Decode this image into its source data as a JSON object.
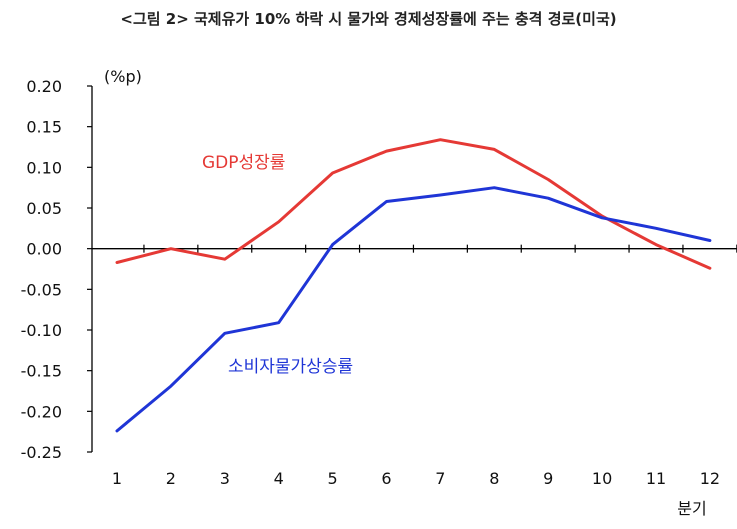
{
  "chart_data": {
    "type": "line",
    "title": "<그림 2> 국제유가 10% 하락 시 물가와 경제성장률에 주는 충격 경로(미국)",
    "unit_label": "(%p)",
    "xlabel": "분기",
    "ylabel": "",
    "x": [
      1,
      2,
      3,
      4,
      5,
      6,
      7,
      8,
      9,
      10,
      11,
      12
    ],
    "ylim": [
      -0.25,
      0.2
    ],
    "yticks": [
      0.2,
      0.15,
      0.1,
      0.05,
      0.0,
      -0.05,
      -0.1,
      -0.15,
      -0.2,
      -0.25
    ],
    "ytick_labels": [
      "0.20",
      "0.15",
      "0.10",
      "0.05",
      "0.00",
      "-0.05",
      "-0.10",
      "-0.15",
      "-0.20",
      "-0.25"
    ],
    "grid": false,
    "series": [
      {
        "name": "GDP성장률",
        "color": "#e53935",
        "values": [
          -0.017,
          0.0,
          -0.013,
          0.033,
          0.093,
          0.12,
          0.134,
          0.122,
          0.085,
          0.04,
          0.005,
          -0.024
        ]
      },
      {
        "name": "소비자물가상승률",
        "color": "#1f35d6",
        "values": [
          -0.224,
          -0.169,
          -0.104,
          -0.091,
          0.005,
          0.058,
          0.066,
          0.075,
          0.062,
          0.038,
          0.025,
          0.01
        ]
      }
    ]
  }
}
